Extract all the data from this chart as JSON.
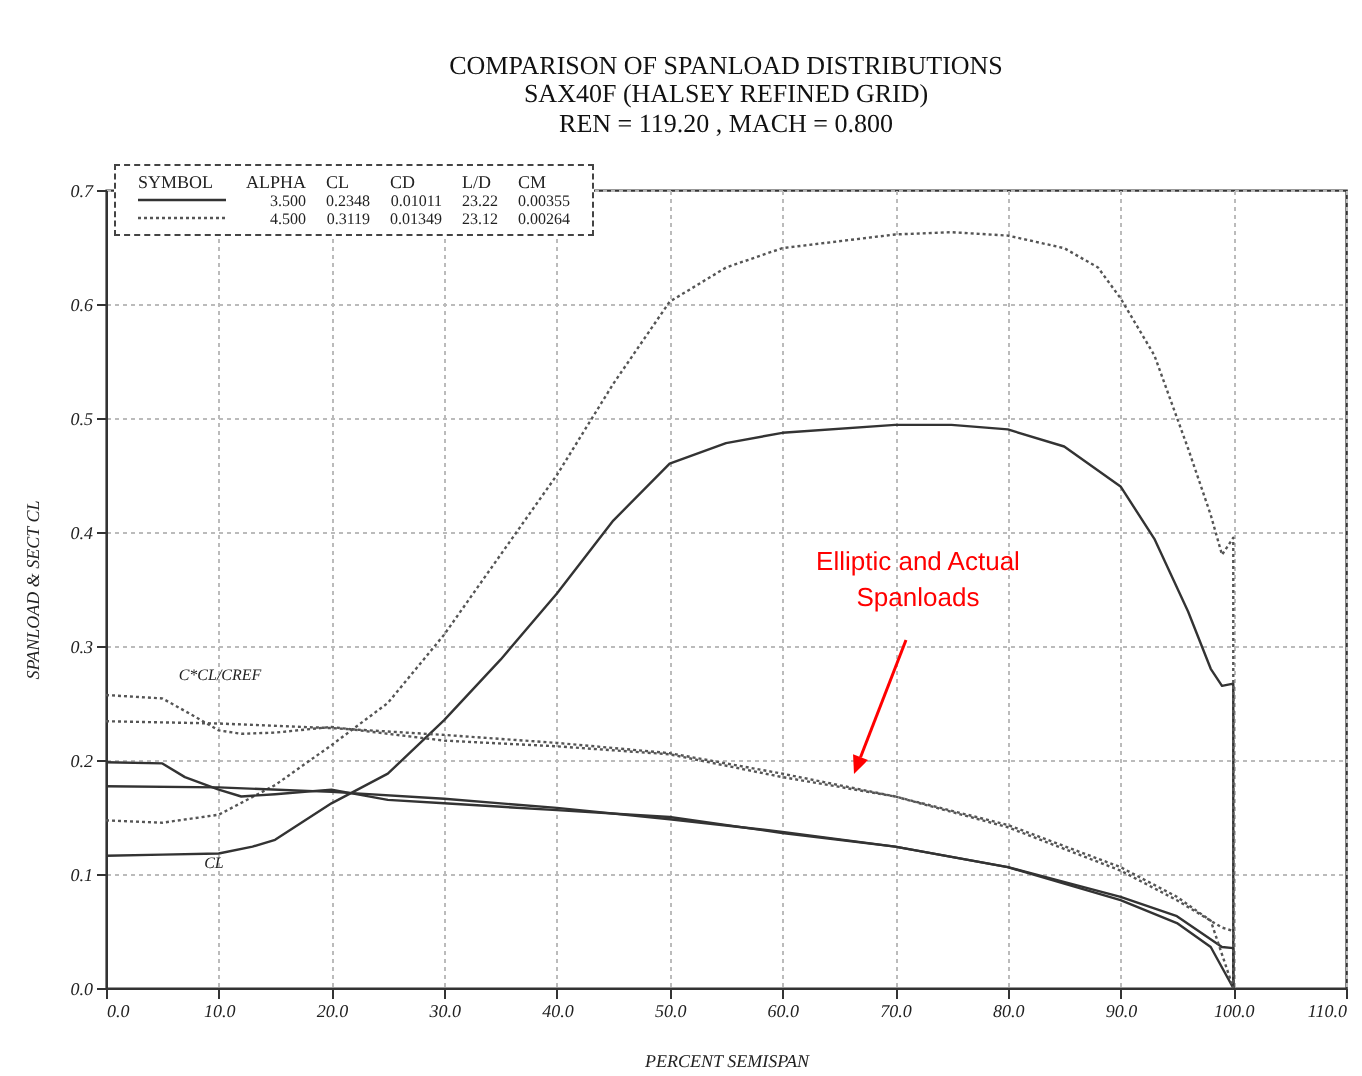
{
  "chart_data": {
    "type": "line",
    "title": "COMPARISON OF SPANLOAD DISTRIBUTIONS",
    "subtitle": "SAX40F   (HALSEY REFINED GRID)\nREN = 119.20  ,  MACH = 0.800",
    "xlabel": "PERCENT SEMISPAN",
    "ylabel": "SPANLOAD & SECT CL",
    "xlim": [
      0,
      110
    ],
    "ylim": [
      0,
      0.7
    ],
    "xticks": [
      {
        "value": 0,
        "label": "0.0"
      },
      {
        "value": 10,
        "label": "10.0"
      },
      {
        "value": 20,
        "label": "20.0"
      },
      {
        "value": 30,
        "label": "30.0"
      },
      {
        "value": 40,
        "label": "40.0"
      },
      {
        "value": 50,
        "label": "50.0"
      },
      {
        "value": 60,
        "label": "60.0"
      },
      {
        "value": 70,
        "label": "70.0"
      },
      {
        "value": 80,
        "label": "80.0"
      },
      {
        "value": 90,
        "label": "90.0"
      },
      {
        "value": 100,
        "label": "100.0"
      },
      {
        "value": 110,
        "label": "110.0"
      }
    ],
    "yticks": [
      {
        "value": 0,
        "label": "0.0"
      },
      0.1,
      0.2,
      0.3,
      0.4,
      0.5,
      0.6,
      0.7
    ],
    "grid": true,
    "marker": "none",
    "series": [
      {
        "color": "#333333",
        "line_style": "solid",
        "x": [
          0,
          5,
          10,
          13,
          15,
          20,
          25,
          30,
          35,
          40,
          45,
          50,
          55,
          60,
          70,
          75,
          80,
          85,
          90,
          93,
          96,
          98,
          99,
          100,
          100
        ],
        "values": [
          0.116,
          0.117,
          0.118,
          0.124,
          0.13,
          0.162,
          0.188,
          0.235,
          0.288,
          0.346,
          0.41,
          0.46,
          0.478,
          0.487,
          0.494,
          0.494,
          0.49,
          0.475,
          0.44,
          0.394,
          0.33,
          0.28,
          0.265,
          0.267,
          0
        ]
      },
      {
        "color": "#555555",
        "line_style": "dotted",
        "x": [
          0,
          5,
          10,
          15,
          20,
          25,
          30,
          35,
          40,
          45,
          50,
          55,
          60,
          65,
          70,
          75,
          80,
          85,
          88,
          90,
          93,
          96,
          98,
          99,
          100,
          100
        ],
        "values": [
          0.147,
          0.145,
          0.152,
          0.178,
          0.213,
          0.25,
          0.31,
          0.38,
          0.45,
          0.53,
          0.602,
          0.632,
          0.649,
          0.655,
          0.661,
          0.663,
          0.66,
          0.649,
          0.632,
          0.605,
          0.555,
          0.473,
          0.415,
          0.38,
          0.395,
          0
        ]
      },
      {
        "color": "#333333",
        "line_style": "solid",
        "x": [
          0,
          5,
          7,
          10,
          12,
          15,
          20,
          25,
          30,
          40,
          50,
          60,
          70,
          80,
          90,
          95,
          99,
          100,
          100
        ],
        "values": [
          0.198,
          0.197,
          0.185,
          0.174,
          0.168,
          0.17,
          0.174,
          0.165,
          0.162,
          0.156,
          0.15,
          0.136,
          0.124,
          0.106,
          0.08,
          0.063,
          0.036,
          0.035,
          0
        ]
      },
      {
        "color": "#333333",
        "line_style": "solid",
        "x": [
          0,
          10,
          20,
          30,
          40,
          50,
          60,
          70,
          80,
          90,
          95,
          98,
          100
        ],
        "values": [
          0.177,
          0.176,
          0.172,
          0.166,
          0.158,
          0.148,
          0.137,
          0.124,
          0.106,
          0.077,
          0.057,
          0.036,
          0
        ]
      },
      {
        "color": "#555555",
        "line_style": "dotted",
        "x": [
          0,
          5,
          7,
          10,
          12,
          15,
          20,
          25,
          30,
          40,
          50,
          60,
          70,
          80,
          90,
          95,
          99,
          100,
          100
        ],
        "values": [
          0.257,
          0.254,
          0.243,
          0.226,
          0.223,
          0.224,
          0.229,
          0.223,
          0.217,
          0.212,
          0.205,
          0.185,
          0.168,
          0.141,
          0.103,
          0.077,
          0.053,
          0.05,
          0
        ]
      },
      {
        "color": "#555555",
        "line_style": "dotted",
        "x": [
          0,
          10,
          20,
          30,
          40,
          50,
          60,
          70,
          80,
          90,
          95,
          98,
          100
        ],
        "values": [
          0.234,
          0.232,
          0.228,
          0.222,
          0.215,
          0.206,
          0.188,
          0.168,
          0.143,
          0.106,
          0.08,
          0.059,
          0
        ]
      }
    ],
    "annotations": [
      "SYMBOL",
      "ALPHA",
      "CL",
      "CD",
      "L/D",
      "CM",
      "3.500",
      "0.2348",
      "0.01011",
      "23.22",
      "0.00355",
      "4.500",
      "0.3119",
      "0.01349",
      "23.12",
      "0.00264",
      "C*CL/CREF",
      "CL",
      "Elliptic and Actual Spanloads"
    ]
  }
}
